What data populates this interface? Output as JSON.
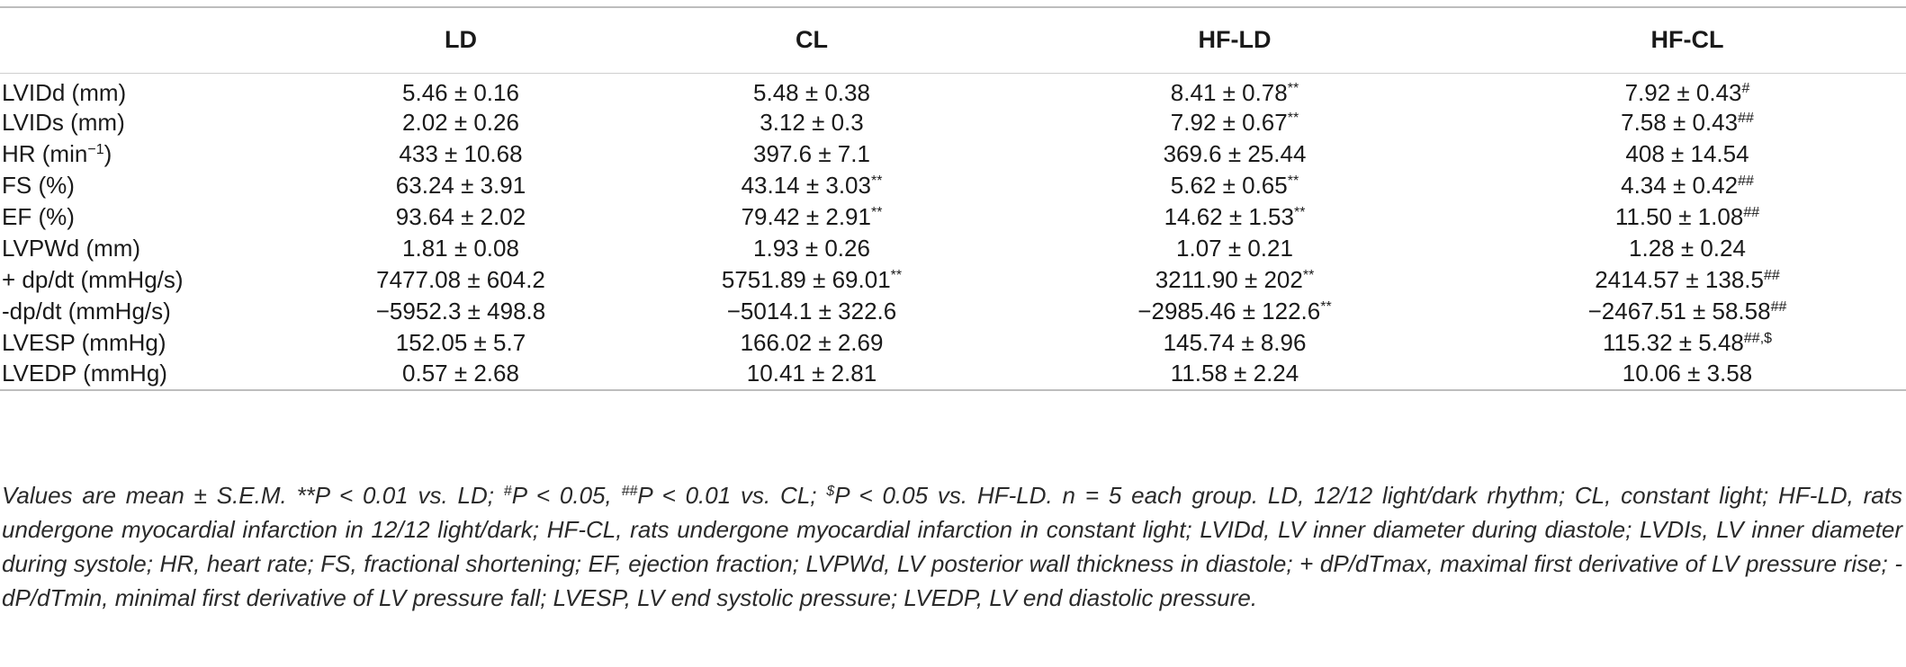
{
  "columns": [
    "",
    "LD",
    "CL",
    "HF-LD",
    "HF-CL"
  ],
  "rows": [
    {
      "label": "LVIDd (mm)",
      "label_sup": "",
      "label_after": "",
      "cells": [
        {
          "v": "5.46 ± 0.16",
          "s": ""
        },
        {
          "v": "5.48 ± 0.38",
          "s": ""
        },
        {
          "v": "8.41 ± 0.78",
          "s": "**"
        },
        {
          "v": "7.92 ± 0.43",
          "s": "#"
        }
      ]
    },
    {
      "label": "LVIDs (mm)",
      "label_sup": "",
      "label_after": "",
      "cells": [
        {
          "v": "2.02 ± 0.26",
          "s": ""
        },
        {
          "v": "3.12 ± 0.3",
          "s": ""
        },
        {
          "v": "7.92 ± 0.67",
          "s": "**"
        },
        {
          "v": "7.58 ± 0.43",
          "s": "##"
        }
      ]
    },
    {
      "label": "HR (min",
      "label_sup": "−1",
      "label_after": ")",
      "cells": [
        {
          "v": "433 ± 10.68",
          "s": ""
        },
        {
          "v": "397.6 ± 7.1",
          "s": ""
        },
        {
          "v": "369.6 ± 25.44",
          "s": ""
        },
        {
          "v": "408 ± 14.54",
          "s": ""
        }
      ]
    },
    {
      "label": "FS (%)",
      "label_sup": "",
      "label_after": "",
      "cells": [
        {
          "v": "63.24 ± 3.91",
          "s": ""
        },
        {
          "v": "43.14 ± 3.03",
          "s": "**"
        },
        {
          "v": "5.62 ± 0.65",
          "s": "**"
        },
        {
          "v": "4.34 ± 0.42",
          "s": "##"
        }
      ]
    },
    {
      "label": "EF (%)",
      "label_sup": "",
      "label_after": "",
      "cells": [
        {
          "v": "93.64 ± 2.02",
          "s": ""
        },
        {
          "v": "79.42 ± 2.91",
          "s": "**"
        },
        {
          "v": "14.62 ± 1.53",
          "s": "**"
        },
        {
          "v": "11.50 ± 1.08",
          "s": "##"
        }
      ]
    },
    {
      "label": "LVPWd (mm)",
      "label_sup": "",
      "label_after": "",
      "cells": [
        {
          "v": "1.81 ± 0.08",
          "s": ""
        },
        {
          "v": "1.93 ± 0.26",
          "s": ""
        },
        {
          "v": "1.07 ± 0.21",
          "s": ""
        },
        {
          "v": "1.28 ± 0.24",
          "s": ""
        }
      ]
    },
    {
      "label": " + dp/dt (mmHg/s)",
      "label_sup": "",
      "label_after": "",
      "cells": [
        {
          "v": "7477.08 ± 604.2",
          "s": ""
        },
        {
          "v": "5751.89 ± 69.01",
          "s": "**"
        },
        {
          "v": "3211.90 ± 202",
          "s": "**"
        },
        {
          "v": "2414.57 ± 138.5",
          "s": "##"
        }
      ]
    },
    {
      "label": "-dp/dt (mmHg/s)",
      "label_sup": "",
      "label_after": "",
      "cells": [
        {
          "v": "−5952.3 ± 498.8",
          "s": ""
        },
        {
          "v": "−5014.1 ± 322.6",
          "s": ""
        },
        {
          "v": "−2985.46 ± 122.6",
          "s": "**"
        },
        {
          "v": "−2467.51 ± 58.58",
          "s": "##"
        }
      ]
    },
    {
      "label": "LVESP (mmHg)",
      "label_sup": "",
      "label_after": "",
      "cells": [
        {
          "v": "152.05 ± 5.7",
          "s": ""
        },
        {
          "v": "166.02 ± 2.69",
          "s": ""
        },
        {
          "v": "145.74 ± 8.96",
          "s": ""
        },
        {
          "v": "115.32 ± 5.48",
          "s": "##,$"
        }
      ]
    },
    {
      "label": "LVEDP (mmHg)",
      "label_sup": "",
      "label_after": "",
      "cells": [
        {
          "v": "0.57 ± 2.68",
          "s": ""
        },
        {
          "v": "10.41 ± 2.81",
          "s": ""
        },
        {
          "v": "11.58 ± 2.24",
          "s": ""
        },
        {
          "v": "10.06 ± 3.58",
          "s": ""
        }
      ]
    }
  ],
  "caption": {
    "p1": "Values are mean ± S.E.M. **P < 0.01 vs. LD; ",
    "s1": "#",
    "p2": "P < 0.05, ",
    "s2": "##",
    "p3": "P < 0.01 vs. CL; ",
    "s3": "$",
    "p4": "P < 0.05 vs. HF-LD. n = 5 each group. LD, 12/12 light/dark rhythm; CL, constant light; HF-LD, rats undergone myocardial infarction in 12/12 light/dark; HF-CL, rats undergone myocardial infarction in constant light; LVIDd, LV inner diameter during diastole; LVDIs, LV inner diameter during systole; HR, heart rate; FS, fractional shortening; EF, ejection fraction; LVPWd, LV posterior wall thickness in diastole; + dP/dTmax, maximal first derivative of LV pressure rise; -dP/dTmin, minimal first derivative of LV pressure fall; LVESP, LV end systolic pressure; LVEDP, LV end diastolic pressure."
  }
}
